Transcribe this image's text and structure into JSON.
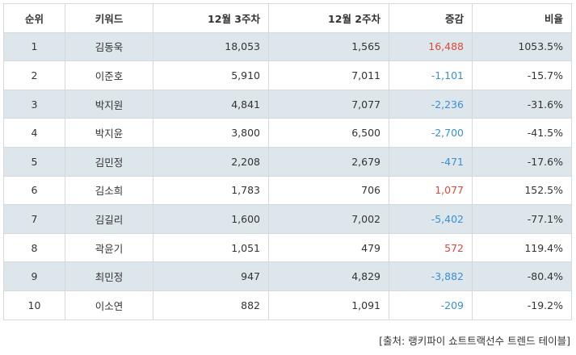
{
  "table": {
    "headers": {
      "rank": "순위",
      "keyword": "키워드",
      "week3": "12월 3주차",
      "week2": "12월 2주차",
      "change": "증감",
      "ratio": "비율"
    },
    "rows": [
      {
        "rank": "1",
        "keyword": "김동욱",
        "week3": "18,053",
        "week2": "1,565",
        "change": "16,488",
        "ratio": "1053.5%"
      },
      {
        "rank": "2",
        "keyword": "이준호",
        "week3": "5,910",
        "week2": "7,011",
        "change": "-1,101",
        "ratio": "-15.7%"
      },
      {
        "rank": "3",
        "keyword": "박지원",
        "week3": "4,841",
        "week2": "7,077",
        "change": "-2,236",
        "ratio": "-31.6%"
      },
      {
        "rank": "4",
        "keyword": "박지윤",
        "week3": "3,800",
        "week2": "6,500",
        "change": "-2,700",
        "ratio": "-41.5%"
      },
      {
        "rank": "5",
        "keyword": "김민정",
        "week3": "2,208",
        "week2": "2,679",
        "change": "-471",
        "ratio": "-17.6%"
      },
      {
        "rank": "6",
        "keyword": "김소희",
        "week3": "1,783",
        "week2": "706",
        "change": "1,077",
        "ratio": "152.5%"
      },
      {
        "rank": "7",
        "keyword": "김길리",
        "week3": "1,600",
        "week2": "7,002",
        "change": "-5,402",
        "ratio": "-77.1%"
      },
      {
        "rank": "8",
        "keyword": "곽윤기",
        "week3": "1,051",
        "week2": "479",
        "change": "572",
        "ratio": "119.4%"
      },
      {
        "rank": "9",
        "keyword": "최민정",
        "week3": "947",
        "week2": "4,829",
        "change": "-3,882",
        "ratio": "-80.4%"
      },
      {
        "rank": "10",
        "keyword": "이소연",
        "week3": "882",
        "week2": "1,091",
        "change": "-209",
        "ratio": "-19.2%"
      }
    ]
  },
  "source": "[출처: 랭키파이 쇼트트랙선수 트렌드 테이블]",
  "colors": {
    "positive_change": "#e0483c",
    "negative_change": "#3a8fd6",
    "shaded_row": "#dde6eb",
    "border": "#d5d8dc"
  }
}
